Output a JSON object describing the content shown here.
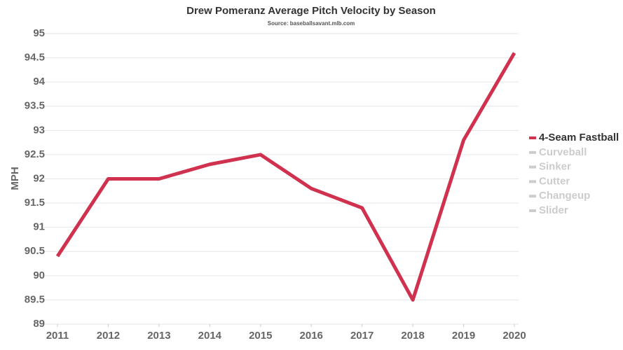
{
  "chart_data": {
    "type": "line",
    "title": "Drew Pomeranz Average Pitch Velocity by Season",
    "subtitle": "Source: baseballsavant.mlb.com",
    "y_label": "MPH",
    "x": [
      2011,
      2012,
      2013,
      2014,
      2015,
      2016,
      2017,
      2018,
      2019,
      2020
    ],
    "xlim": [
      2011,
      2020
    ],
    "xticks": [
      2011,
      2012,
      2013,
      2014,
      2015,
      2016,
      2017,
      2018,
      2019,
      2020
    ],
    "ylim": [
      89,
      95
    ],
    "yticks": [
      89,
      89.5,
      90,
      90.5,
      91,
      91.5,
      92,
      92.5,
      93,
      93.5,
      94,
      94.5,
      95
    ],
    "grid": true,
    "legend": "right",
    "series": [
      {
        "name": "4-Seam Fastball",
        "color": "#d0314e",
        "visible": true,
        "values": [
          90.4,
          92.0,
          92.0,
          92.3,
          92.5,
          91.8,
          91.4,
          89.5,
          92.8,
          94.6
        ]
      },
      {
        "name": "Curveball",
        "color": "#cccccc",
        "visible": false,
        "values": [
          null,
          null,
          null,
          null,
          null,
          null,
          null,
          null,
          null,
          null
        ]
      },
      {
        "name": "Sinker",
        "color": "#cccccc",
        "visible": false,
        "values": [
          null,
          null,
          null,
          null,
          null,
          null,
          null,
          null,
          null,
          null
        ]
      },
      {
        "name": "Cutter",
        "color": "#cccccc",
        "visible": false,
        "values": [
          null,
          null,
          null,
          null,
          null,
          null,
          null,
          null,
          null,
          null
        ]
      },
      {
        "name": "Changeup",
        "color": "#cccccc",
        "visible": false,
        "values": [
          null,
          null,
          null,
          null,
          null,
          null,
          null,
          null,
          null,
          null
        ]
      },
      {
        "name": "Slider",
        "color": "#cccccc",
        "visible": false,
        "values": [
          null,
          null,
          null,
          null,
          null,
          null,
          null,
          null,
          null,
          null
        ]
      }
    ]
  }
}
